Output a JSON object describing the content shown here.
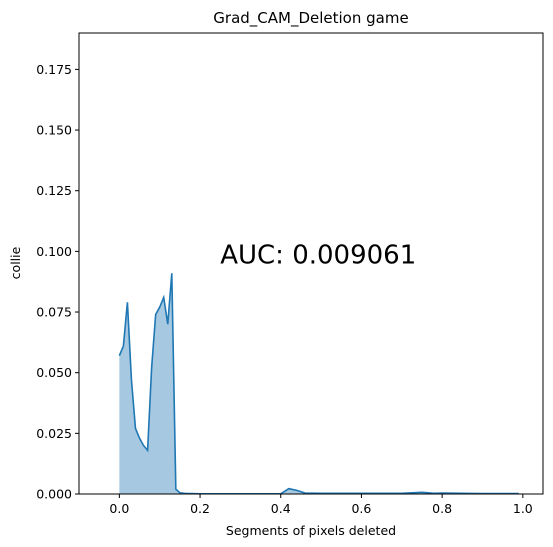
{
  "chart_data": {
    "type": "area",
    "title": "Grad_CAM_Deletion game",
    "xlabel": "Segments of pixels deleted",
    "ylabel": "collie",
    "xlim": [
      -0.1,
      1.05
    ],
    "ylim": [
      0.0,
      0.19
    ],
    "grid": false,
    "x_ticks": [
      0.0,
      0.2,
      0.4,
      0.6,
      0.8,
      1.0
    ],
    "x_tick_labels": [
      "0.0",
      "0.2",
      "0.4",
      "0.6",
      "0.8",
      "1.0"
    ],
    "y_ticks": [
      0.0,
      0.025,
      0.05,
      0.075,
      0.1,
      0.125,
      0.15,
      0.175
    ],
    "y_tick_labels": [
      "0.000",
      "0.025",
      "0.050",
      "0.075",
      "0.100",
      "0.125",
      "0.150",
      "0.175"
    ],
    "annotation": "AUC: 0.009061",
    "annotation_pos": [
      0.25,
      0.095
    ],
    "colors": {
      "line": "#1f77b4",
      "fill": "#a6c8e0"
    },
    "series": [
      {
        "x": [
          0.0,
          0.01,
          0.02,
          0.03,
          0.04,
          0.05,
          0.06,
          0.07,
          0.08,
          0.09,
          0.1,
          0.11,
          0.12,
          0.13,
          0.14,
          0.15,
          0.16,
          0.17,
          0.18,
          0.2,
          0.3,
          0.4,
          0.42,
          0.44,
          0.46,
          0.5,
          0.6,
          0.7,
          0.75,
          0.78,
          0.8,
          0.9,
          0.99
        ],
        "values": [
          0.057,
          0.061,
          0.079,
          0.047,
          0.027,
          0.023,
          0.02,
          0.018,
          0.052,
          0.074,
          0.077,
          0.081,
          0.07,
          0.091,
          0.002,
          0.0005,
          0.0003,
          0.0002,
          0.0002,
          0.0001,
          0.0001,
          0.0001,
          0.0022,
          0.0015,
          0.0004,
          0.0003,
          0.0003,
          0.0003,
          0.0007,
          0.0003,
          0.0004,
          0.0002,
          0.0002
        ]
      }
    ]
  }
}
